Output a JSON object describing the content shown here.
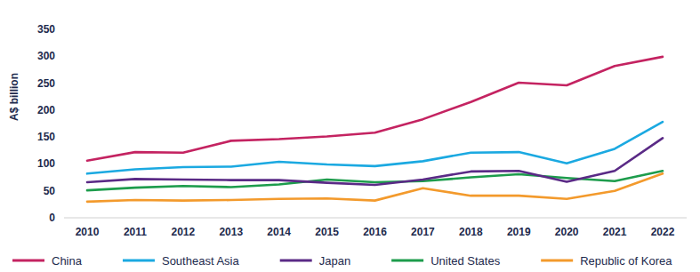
{
  "chart_data": {
    "type": "line",
    "y_label": "A$ billion",
    "categories": [
      "2010",
      "2011",
      "2012",
      "2013",
      "2014",
      "2015",
      "2016",
      "2017",
      "2018",
      "2019",
      "2020",
      "2021",
      "2022"
    ],
    "series": [
      {
        "name": "China",
        "color": "#c42361",
        "values": [
          106,
          122,
          121,
          143,
          146,
          151,
          158,
          183,
          215,
          251,
          246,
          282,
          299
        ]
      },
      {
        "name": "Southeast Asia",
        "color": "#1ba9e1",
        "values": [
          82,
          90,
          94,
          95,
          104,
          99,
          96,
          105,
          121,
          122,
          101,
          128,
          178
        ]
      },
      {
        "name": "Japan",
        "color": "#5a2a86",
        "values": [
          66,
          72,
          71,
          70,
          70,
          65,
          61,
          71,
          86,
          87,
          67,
          87,
          148
        ]
      },
      {
        "name": "United States",
        "color": "#1d9c4c",
        "values": [
          51,
          56,
          59,
          57,
          62,
          71,
          66,
          68,
          75,
          81,
          74,
          68,
          87
        ]
      },
      {
        "name": "Republic of Korea",
        "color": "#f39a2c",
        "values": [
          30,
          33,
          32,
          33,
          35,
          36,
          32,
          55,
          41,
          41,
          35,
          50,
          82
        ]
      }
    ],
    "ylim": [
      0,
      350
    ],
    "yticks": [
      0,
      50,
      100,
      150,
      200,
      250,
      300,
      350
    ],
    "grid": false,
    "legend": "bottom"
  }
}
